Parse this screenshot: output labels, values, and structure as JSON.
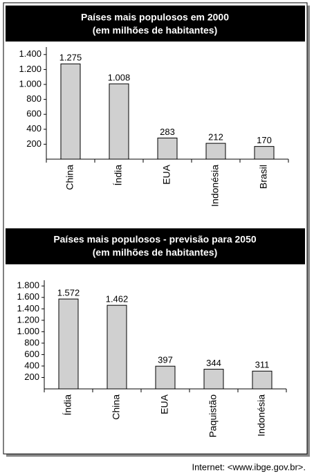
{
  "chart_data": [
    {
      "type": "bar",
      "title": "Países mais populosos em 2000",
      "subtitle": "(em milhões de habitantes)",
      "categories": [
        "China",
        "Índia",
        "EUA",
        "Indonésia",
        "Brasil"
      ],
      "values": [
        1275,
        1008,
        283,
        212,
        170
      ],
      "value_labels": [
        "1.275",
        "1.008",
        "283",
        "212",
        "170"
      ],
      "color": "#d0d0d0",
      "ylim": [
        0,
        1500
      ],
      "yticks": [
        200,
        400,
        600,
        800,
        {
          "value": 1000,
          "label": "1.000"
        },
        {
          "value": 1200,
          "label": "1.200"
        },
        {
          "value": 1400,
          "label": "1.400"
        }
      ]
    },
    {
      "type": "bar",
      "title": "Países mais populosos - previsão para 2050",
      "subtitle": "(em milhões de habitantes)",
      "categories": [
        "Índia",
        "China",
        "EUA",
        "Paquistão",
        "Indonésia"
      ],
      "values": [
        1572,
        1462,
        397,
        344,
        311
      ],
      "value_labels": [
        "1.572",
        "1.462",
        "397",
        "344",
        "311"
      ],
      "color": "#d0d0d0",
      "ylim": [
        0,
        1900
      ],
      "yticks": [
        200,
        400,
        600,
        800,
        {
          "value": 1000,
          "label": "1.000"
        },
        {
          "value": 1200,
          "label": "1.200"
        },
        {
          "value": 1400,
          "label": "1.400"
        },
        {
          "value": 1600,
          "label": "1.600"
        },
        {
          "value": 1800,
          "label": "1.800"
        }
      ]
    }
  ],
  "source": "Internet: <www.ibge.gov.br>."
}
